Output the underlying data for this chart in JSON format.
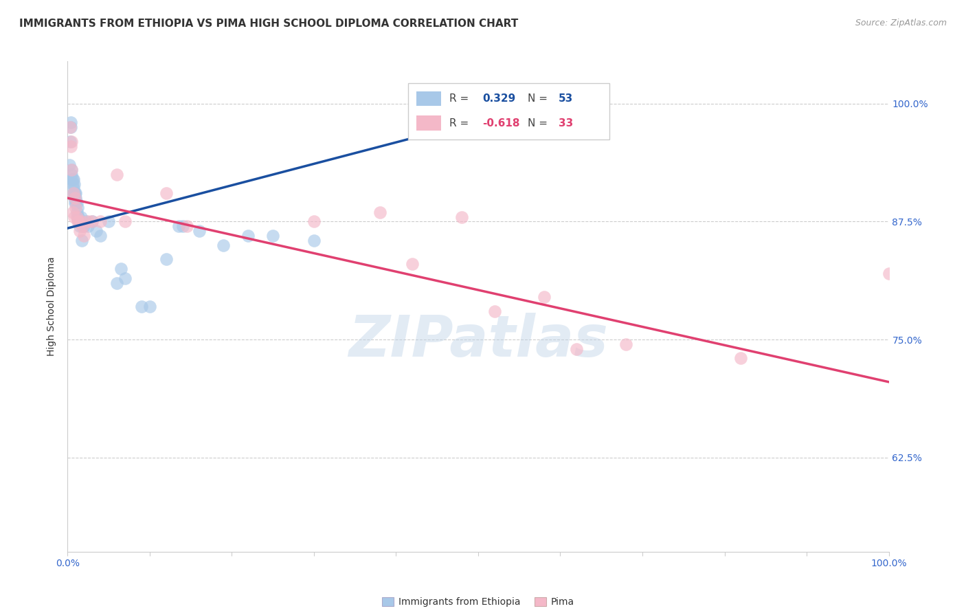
{
  "title": "IMMIGRANTS FROM ETHIOPIA VS PIMA HIGH SCHOOL DIPLOMA CORRELATION CHART",
  "source": "Source: ZipAtlas.com",
  "ylabel": "High School Diploma",
  "watermark": "ZIPatlas",
  "blue_color": "#a8c8e8",
  "pink_color": "#f4b8c8",
  "blue_line_color": "#1a4fa0",
  "pink_line_color": "#e04070",
  "x_min": 0.0,
  "x_max": 1.0,
  "y_min": 0.525,
  "y_max": 1.045,
  "yticks": [
    0.625,
    0.75,
    0.875,
    1.0
  ],
  "ytick_labels": [
    "62.5%",
    "75.0%",
    "87.5%",
    "100.0%"
  ],
  "xtick_labels_left": "0.0%",
  "xtick_labels_right": "100.0%",
  "blue_x": [
    0.002,
    0.003,
    0.004,
    0.004,
    0.005,
    0.005,
    0.005,
    0.006,
    0.006,
    0.007,
    0.007,
    0.007,
    0.008,
    0.008,
    0.008,
    0.009,
    0.009,
    0.009,
    0.01,
    0.01,
    0.01,
    0.011,
    0.011,
    0.012,
    0.012,
    0.013,
    0.013,
    0.014,
    0.015,
    0.015,
    0.016,
    0.017,
    0.018,
    0.02,
    0.022,
    0.025,
    0.03,
    0.035,
    0.04,
    0.05,
    0.06,
    0.065,
    0.07,
    0.09,
    0.1,
    0.12,
    0.135,
    0.14,
    0.16,
    0.19,
    0.22,
    0.25,
    0.3
  ],
  "blue_y": [
    0.935,
    0.96,
    0.975,
    0.98,
    0.93,
    0.925,
    0.92,
    0.92,
    0.915,
    0.92,
    0.91,
    0.905,
    0.915,
    0.905,
    0.9,
    0.905,
    0.9,
    0.895,
    0.905,
    0.9,
    0.895,
    0.895,
    0.885,
    0.89,
    0.88,
    0.88,
    0.875,
    0.875,
    0.875,
    0.87,
    0.88,
    0.855,
    0.87,
    0.87,
    0.875,
    0.87,
    0.875,
    0.865,
    0.86,
    0.875,
    0.81,
    0.825,
    0.815,
    0.785,
    0.785,
    0.835,
    0.87,
    0.87,
    0.865,
    0.85,
    0.86,
    0.86,
    0.855
  ],
  "pink_x": [
    0.003,
    0.004,
    0.005,
    0.005,
    0.006,
    0.007,
    0.008,
    0.009,
    0.01,
    0.011,
    0.012,
    0.013,
    0.015,
    0.016,
    0.018,
    0.02,
    0.025,
    0.03,
    0.04,
    0.06,
    0.07,
    0.12,
    0.145,
    0.3,
    0.38,
    0.42,
    0.48,
    0.52,
    0.58,
    0.62,
    0.68,
    0.82,
    1.0
  ],
  "pink_y": [
    0.975,
    0.955,
    0.96,
    0.93,
    0.885,
    0.905,
    0.88,
    0.9,
    0.89,
    0.88,
    0.875,
    0.875,
    0.865,
    0.875,
    0.87,
    0.86,
    0.875,
    0.875,
    0.875,
    0.925,
    0.875,
    0.905,
    0.87,
    0.875,
    0.885,
    0.83,
    0.88,
    0.78,
    0.795,
    0.74,
    0.745,
    0.73,
    0.82
  ],
  "blue_trend_x": [
    0.0,
    0.47
  ],
  "blue_trend_y": [
    0.868,
    0.975
  ],
  "pink_trend_x": [
    0.0,
    1.0
  ],
  "pink_trend_y": [
    0.9,
    0.705
  ],
  "bg_color": "#ffffff",
  "grid_color": "#cccccc",
  "title_fontsize": 11,
  "tick_fontsize": 10,
  "watermark_fontsize": 60,
  "watermark_color": "#c0d4e8",
  "watermark_alpha": 0.45,
  "legend_r_blue": "0.329",
  "legend_n_blue": "53",
  "legend_r_pink": "-0.618",
  "legend_n_pink": "33",
  "bottom_label_blue": "Immigrants from Ethiopia",
  "bottom_label_pink": "Pima"
}
